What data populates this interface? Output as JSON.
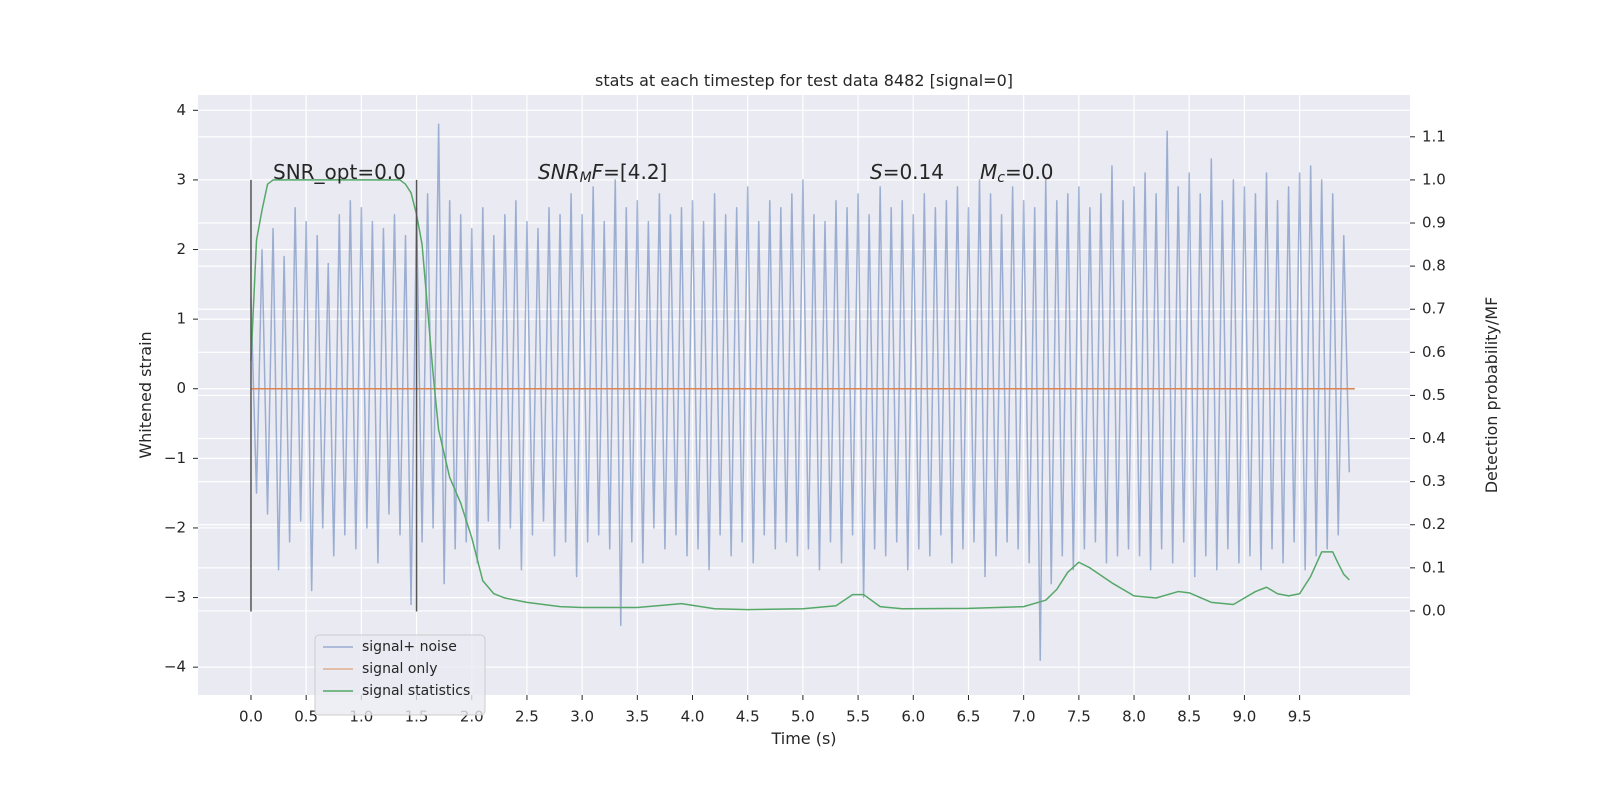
{
  "chart_data": {
    "type": "line",
    "title": "stats at each timestep for test data 8482 [signal=0]",
    "xlabel": "Time (s)",
    "ylabel": "Whitened strain",
    "y2label": "Detection probability/MF",
    "xlim": [
      -0.48,
      10.5
    ],
    "ylim": [
      -4.4,
      4.22
    ],
    "y2lim": [
      -0.195,
      1.197
    ],
    "xticks": [
      {
        "value": 0,
        "label": "0.0"
      },
      0.5,
      {
        "value": 1,
        "label": "1.0"
      },
      1.5,
      {
        "value": 2,
        "label": "2.0"
      },
      2.5,
      {
        "value": 3,
        "label": "3.0"
      },
      3.5,
      {
        "value": 4,
        "label": "4.0"
      },
      4.5,
      {
        "value": 5,
        "label": "5.0"
      },
      5.5,
      {
        "value": 6,
        "label": "6.0"
      },
      6.5,
      {
        "value": 7,
        "label": "7.0"
      },
      7.5,
      {
        "value": 8,
        "label": "8.0"
      },
      8.5,
      {
        "value": 9,
        "label": "9.0"
      },
      9.5
    ],
    "yticks": [
      {
        "value": -4,
        "label": "−4"
      },
      {
        "value": -3,
        "label": "−3"
      },
      {
        "value": -2,
        "label": "−2"
      },
      {
        "value": -1,
        "label": "−1"
      },
      0,
      1,
      2,
      3,
      4
    ],
    "y2ticks": [
      {
        "value": 0,
        "label": "0.0"
      },
      0.1,
      0.2,
      0.3,
      0.4,
      0.5,
      0.6,
      0.7,
      0.8,
      0.9,
      {
        "value": 1,
        "label": "1.0"
      },
      1.1
    ],
    "grid": true,
    "legend": "lower left",
    "series": [
      {
        "name": "signal+ noise",
        "color": "#4c72b0",
        "axis": "y",
        "x": [
          0,
          0.05,
          0.1,
          0.15,
          0.2,
          0.25,
          0.3,
          0.35,
          0.4,
          0.45,
          0.5,
          0.55,
          0.6,
          0.65,
          0.7,
          0.75,
          0.8,
          0.85,
          0.9,
          0.95,
          1,
          1.05,
          1.1,
          1.15,
          1.2,
          1.25,
          1.3,
          1.35,
          1.4,
          1.45,
          1.5,
          1.55,
          1.6,
          1.65,
          1.7,
          1.75,
          1.8,
          1.85,
          1.9,
          1.95,
          2,
          2.05,
          2.1,
          2.15,
          2.2,
          2.25,
          2.3,
          2.35,
          2.4,
          2.45,
          2.5,
          2.55,
          2.6,
          2.65,
          2.7,
          2.75,
          2.8,
          2.85,
          2.9,
          2.95,
          3,
          3.05,
          3.1,
          3.15,
          3.2,
          3.25,
          3.3,
          3.35,
          3.4,
          3.45,
          3.5,
          3.55,
          3.6,
          3.65,
          3.7,
          3.75,
          3.8,
          3.85,
          3.9,
          3.95,
          4,
          4.05,
          4.1,
          4.15,
          4.2,
          4.25,
          4.3,
          4.35,
          4.4,
          4.45,
          4.5,
          4.55,
          4.6,
          4.65,
          4.7,
          4.75,
          4.8,
          4.85,
          4.9,
          4.95,
          5,
          5.05,
          5.1,
          5.15,
          5.2,
          5.25,
          5.3,
          5.35,
          5.4,
          5.45,
          5.5,
          5.55,
          5.6,
          5.65,
          5.7,
          5.75,
          5.8,
          5.85,
          5.9,
          5.95,
          6,
          6.05,
          6.1,
          6.15,
          6.2,
          6.25,
          6.3,
          6.35,
          6.4,
          6.45,
          6.5,
          6.55,
          6.6,
          6.65,
          6.7,
          6.75,
          6.8,
          6.85,
          6.9,
          6.95,
          7,
          7.05,
          7.1,
          7.15,
          7.2,
          7.25,
          7.3,
          7.35,
          7.4,
          7.45,
          7.5,
          7.55,
          7.6,
          7.65,
          7.7,
          7.75,
          7.8,
          7.85,
          7.9,
          7.95,
          8,
          8.05,
          8.1,
          8.15,
          8.2,
          8.25,
          8.3,
          8.35,
          8.4,
          8.45,
          8.5,
          8.55,
          8.6,
          8.65,
          8.7,
          8.75,
          8.8,
          8.85,
          8.9,
          8.95,
          9,
          9.05,
          9.1,
          9.15,
          9.2,
          9.25,
          9.3,
          9.35,
          9.4,
          9.45,
          9.5,
          9.55,
          9.6,
          9.65,
          9.7,
          9.75,
          9.8,
          9.85,
          9.9,
          9.95
        ],
        "values": [
          1.3,
          -1.5,
          2.0,
          -1.8,
          2.3,
          -2.6,
          1.9,
          -2.2,
          2.6,
          -1.9,
          2.4,
          -2.9,
          2.2,
          -2.0,
          1.8,
          -2.4,
          2.5,
          -2.1,
          2.7,
          -2.3,
          2.6,
          -2.0,
          2.4,
          -2.5,
          2.3,
          -1.8,
          2.5,
          -2.1,
          2.2,
          -3.1,
          2.6,
          -2.2,
          2.8,
          -2.0,
          3.8,
          -2.8,
          2.7,
          -2.3,
          2.5,
          -2.2,
          2.3,
          -2.5,
          2.6,
          -1.9,
          2.2,
          -2.3,
          2.5,
          -2.0,
          2.7,
          -2.6,
          2.4,
          -2.1,
          2.3,
          -1.9,
          2.6,
          -2.4,
          2.5,
          -2.2,
          2.8,
          -2.7,
          2.5,
          -2.2,
          2.9,
          -2.1,
          2.4,
          -2.3,
          3.0,
          -3.4,
          2.6,
          -2.2,
          2.7,
          -2.5,
          2.4,
          -2.0,
          2.8,
          -2.3,
          2.5,
          -2.1,
          2.6,
          -2.4,
          2.7,
          -2.3,
          2.4,
          -2.6,
          2.8,
          -2.1,
          2.5,
          -2.4,
          2.6,
          -2.2,
          2.9,
          -2.5,
          2.4,
          -2.1,
          2.7,
          -2.3,
          2.6,
          -2.2,
          2.8,
          -2.4,
          3.0,
          -2.3,
          2.5,
          -2.6,
          2.4,
          -2.2,
          2.7,
          -2.5,
          2.6,
          -2.1,
          2.8,
          -3.0,
          2.5,
          -2.3,
          2.9,
          -2.4,
          2.6,
          -2.2,
          2.7,
          -2.6,
          2.5,
          -2.3,
          2.8,
          -2.4,
          2.6,
          -2.1,
          2.7,
          -2.5,
          2.9,
          -2.3,
          2.6,
          -2.2,
          3.0,
          -2.7,
          2.8,
          -2.4,
          2.5,
          -2.2,
          2.9,
          -2.3,
          2.7,
          -2.5,
          2.6,
          -3.9,
          3.0,
          -2.8,
          2.7,
          -2.4,
          2.8,
          -2.6,
          2.9,
          -2.3,
          2.6,
          -2.2,
          2.8,
          -2.5,
          3.2,
          -2.4,
          2.7,
          -2.3,
          2.9,
          -2.4,
          3.1,
          -2.6,
          2.8,
          -2.3,
          3.7,
          -2.5,
          2.9,
          -2.2,
          3.1,
          -2.7,
          2.8,
          -2.4,
          3.3,
          -2.6,
          2.7,
          -2.3,
          3.0,
          -2.5,
          2.9,
          -2.4,
          2.8,
          -2.6,
          3.1,
          -2.3,
          2.7,
          -2.5,
          2.9,
          -2.2,
          3.1,
          -2.6,
          3.2,
          -2.4,
          3.0,
          -2.3,
          2.8,
          -2.1,
          2.2,
          -1.2
        ]
      },
      {
        "name": "signal only",
        "color": "#dd8452",
        "axis": "y",
        "x": [
          0,
          10
        ],
        "values": [
          0,
          0
        ]
      },
      {
        "name": "signal statistics",
        "color": "#55a868",
        "axis": "y2",
        "x": [
          0,
          0.05,
          0.1,
          0.15,
          0.2,
          0.3,
          0.5,
          0.8,
          1.0,
          1.2,
          1.35,
          1.4,
          1.45,
          1.5,
          1.55,
          1.6,
          1.65,
          1.7,
          1.8,
          1.9,
          2.0,
          2.1,
          2.2,
          2.3,
          2.5,
          2.8,
          3.0,
          3.5,
          3.9,
          4.2,
          4.5,
          5.0,
          5.3,
          5.45,
          5.55,
          5.7,
          5.9,
          6.5,
          7.0,
          7.2,
          7.3,
          7.4,
          7.5,
          7.6,
          7.8,
          8.0,
          8.2,
          8.4,
          8.5,
          8.7,
          8.9,
          9.0,
          9.1,
          9.2,
          9.3,
          9.4,
          9.5,
          9.6,
          9.7,
          9.8,
          9.85,
          9.9,
          9.95
        ],
        "values": [
          0.58,
          0.86,
          0.93,
          0.99,
          1.0,
          1.0,
          1.0,
          1.0,
          1.0,
          1.0,
          1.0,
          0.99,
          0.97,
          0.92,
          0.85,
          0.7,
          0.55,
          0.42,
          0.31,
          0.25,
          0.17,
          0.07,
          0.04,
          0.03,
          0.02,
          0.01,
          0.008,
          0.008,
          0.017,
          0.005,
          0.003,
          0.005,
          0.012,
          0.038,
          0.038,
          0.01,
          0.005,
          0.006,
          0.01,
          0.025,
          0.05,
          0.09,
          0.113,
          0.1,
          0.065,
          0.035,
          0.03,
          0.045,
          0.042,
          0.02,
          0.015,
          0.03,
          0.045,
          0.055,
          0.04,
          0.035,
          0.04,
          0.08,
          0.137,
          0.137,
          0.11,
          0.085,
          0.072
        ]
      }
    ],
    "vlines": [
      {
        "x": 0,
        "ymin": -3.2,
        "ymax": 3.0,
        "color": "#555555"
      },
      {
        "x": 1.5,
        "ymin": -3.2,
        "ymax": 3.0,
        "color": "#555555"
      }
    ],
    "annotations": [
      [
        {
          "text": "SNR_opt=0.0"
        }
      ],
      [
        {
          "text": "SNR",
          "italic": true
        },
        {
          "text": "M",
          "italic": true,
          "sub": true
        },
        {
          "text": "F",
          "italic": true
        },
        {
          "text": "=[4.2]"
        }
      ],
      [
        {
          "text": "S",
          "italic": true
        },
        {
          "text": "=0.14"
        }
      ],
      [
        {
          "text": "M",
          "italic": true
        },
        {
          "text": "c",
          "italic": true,
          "sub": true
        },
        {
          "text": "=0.0"
        }
      ]
    ]
  }
}
